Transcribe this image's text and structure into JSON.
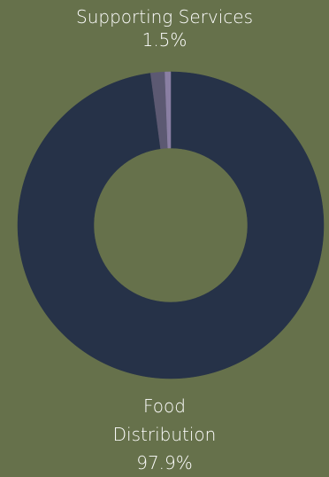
{
  "chart_data": {
    "type": "pie",
    "donut": true,
    "title": "",
    "slices": [
      {
        "label": "Food Distribution",
        "value": 97.9,
        "display": "97.9%",
        "color": "#263248"
      },
      {
        "label": "Supporting Services",
        "value": 1.5,
        "display": "1.5%",
        "color": "#5c5972"
      },
      {
        "label": "",
        "value": 0.6,
        "display": "",
        "color": "#8a7fa3"
      }
    ]
  },
  "colors": {
    "background": "#66714b",
    "label_text": "#ffffff"
  }
}
